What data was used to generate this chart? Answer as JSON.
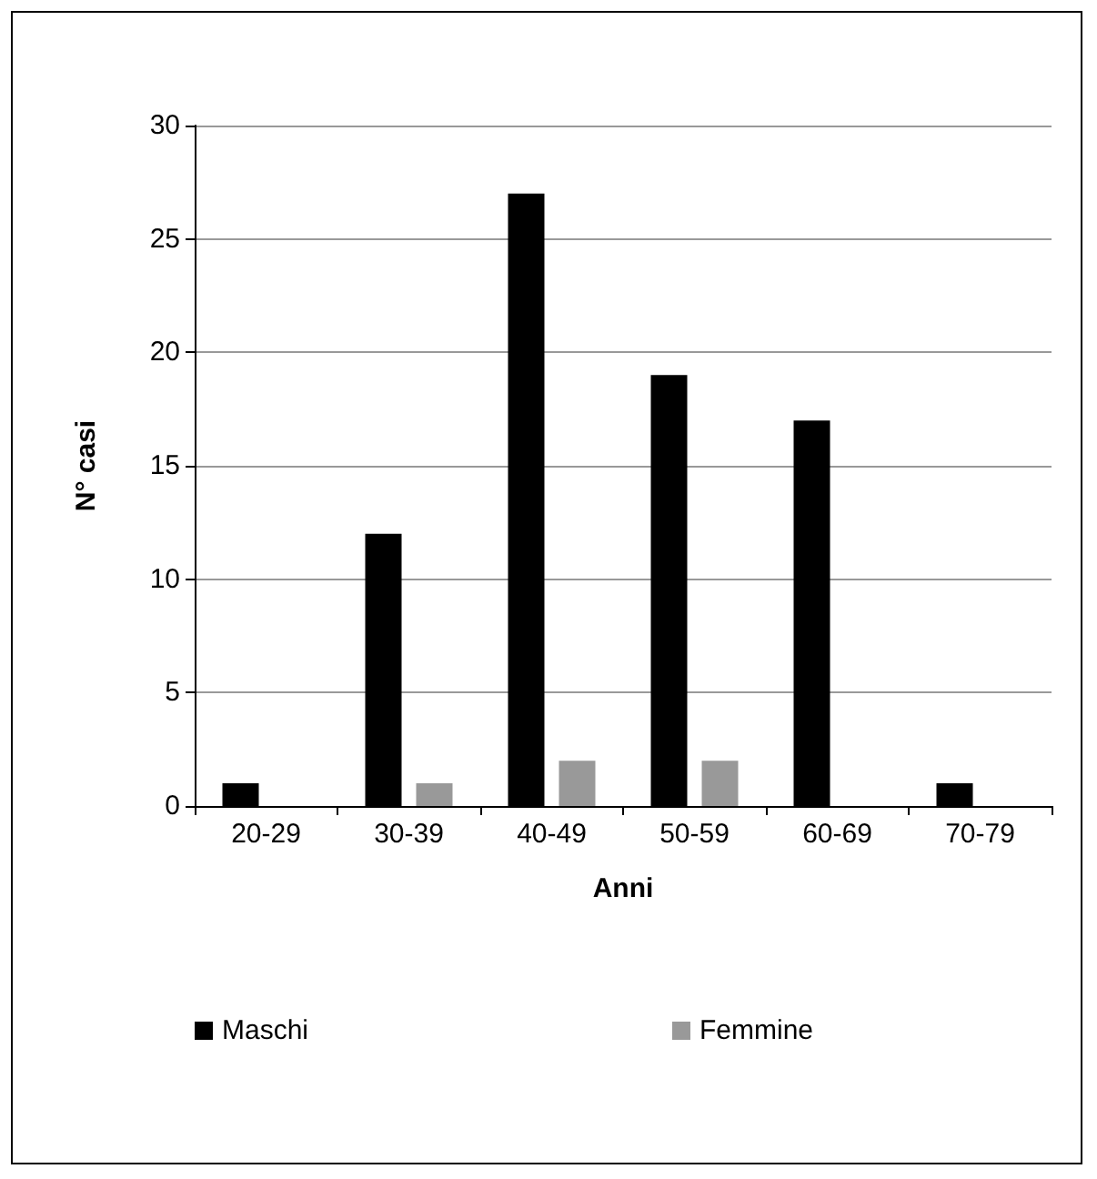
{
  "chart_data": {
    "type": "bar",
    "xlabel": "Anni",
    "ylabel": "N° casi",
    "categories": [
      "20-29",
      "30-39",
      "40-49",
      "50-59",
      "60-69",
      "70-79"
    ],
    "series": [
      {
        "name": "Maschi",
        "color": "#000000",
        "values": [
          1,
          12,
          27,
          19,
          17,
          1
        ]
      },
      {
        "name": "Femmine",
        "color": "#999999",
        "values": [
          0,
          1,
          2,
          2,
          0,
          0
        ]
      }
    ],
    "ylim": [
      0,
      30
    ],
    "yticks": [
      0,
      5,
      10,
      15,
      20,
      25,
      30
    ],
    "grid": "y",
    "legend": "bottom"
  }
}
